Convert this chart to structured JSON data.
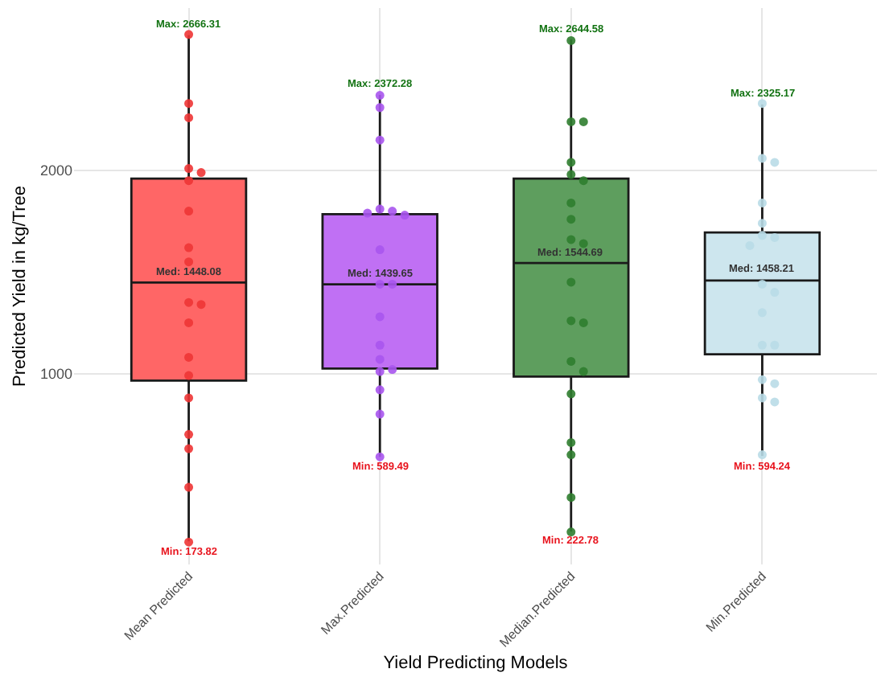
{
  "chart_data": {
    "type": "box",
    "xlabel": "Yield Predicting Models",
    "ylabel": "Predicted Yield in kg/Tree",
    "categories": [
      "Mean Predicted",
      "Max.Predicted",
      "Median.Predicted",
      "Min.Predicted"
    ],
    "boxes": [
      {
        "low": 173.82,
        "q1": 965,
        "median": 1448.08,
        "q3": 1960,
        "high": 2666.31
      },
      {
        "low": 589.49,
        "q1": 1025,
        "median": 1439.65,
        "q3": 1785,
        "high": 2372.28
      },
      {
        "low": 222.78,
        "q1": 985,
        "median": 1544.69,
        "q3": 1960,
        "high": 2644.58
      },
      {
        "low": 594.24,
        "q1": 1095,
        "median": 1458.21,
        "q3": 1695,
        "high": 2325.17
      }
    ],
    "colors": [
      "#ff6666",
      "#c070f4",
      "#5e9e5e",
      "#cde6ee"
    ],
    "series": [
      {
        "type": "scatter",
        "color": "#ee3535",
        "x": [
          "Mean Predicted",
          "Mean Predicted",
          "Mean Predicted",
          "Mean Predicted",
          "Mean Predicted",
          "Mean Predicted",
          "Mean Predicted",
          "Mean Predicted",
          "Mean Predicted",
          "Mean Predicted",
          "Mean Predicted",
          "Mean Predicted",
          "Mean Predicted",
          "Mean Predicted",
          "Mean Predicted",
          "Mean Predicted",
          "Mean Predicted",
          "Mean Predicted",
          "Mean Predicted"
        ],
        "values": [
          2670,
          2330,
          2260,
          2010,
          1990,
          1950,
          1800,
          1620,
          1550,
          1350,
          1340,
          1250,
          1080,
          990,
          880,
          700,
          630,
          440,
          170
        ]
      },
      {
        "type": "scatter",
        "color": "#a855ee",
        "x": [
          "Max.Predicted",
          "Max.Predicted",
          "Max.Predicted",
          "Max.Predicted",
          "Max.Predicted",
          "Max.Predicted",
          "Max.Predicted",
          "Max.Predicted",
          "Max.Predicted",
          "Max.Predicted",
          "Max.Predicted",
          "Max.Predicted",
          "Max.Predicted",
          "Max.Predicted",
          "Max.Predicted",
          "Max.Predicted",
          "Max.Predicted",
          "Max.Predicted"
        ],
        "values": [
          2370,
          2310,
          2150,
          1810,
          1800,
          1790,
          1780,
          1610,
          1440,
          1440,
          1280,
          1140,
          1070,
          1020,
          1010,
          920,
          800,
          590
        ]
      },
      {
        "type": "scatter",
        "color": "#2f7d2f",
        "x": [
          "Median.Predicted",
          "Median.Predicted",
          "Median.Predicted",
          "Median.Predicted",
          "Median.Predicted",
          "Median.Predicted",
          "Median.Predicted",
          "Median.Predicted",
          "Median.Predicted",
          "Median.Predicted",
          "Median.Predicted",
          "Median.Predicted",
          "Median.Predicted",
          "Median.Predicted",
          "Median.Predicted",
          "Median.Predicted",
          "Median.Predicted",
          "Median.Predicted",
          "Median.Predicted",
          "Median.Predicted"
        ],
        "values": [
          2640,
          2240,
          2240,
          2040,
          1980,
          1950,
          1840,
          1760,
          1660,
          1640,
          1450,
          1260,
          1250,
          1060,
          1010,
          900,
          660,
          600,
          390,
          220
        ]
      },
      {
        "type": "scatter",
        "color": "#b9dbe7",
        "x": [
          "Min.Predicted",
          "Min.Predicted",
          "Min.Predicted",
          "Min.Predicted",
          "Min.Predicted",
          "Min.Predicted",
          "Min.Predicted",
          "Min.Predicted",
          "Min.Predicted",
          "Min.Predicted",
          "Min.Predicted",
          "Min.Predicted",
          "Min.Predicted",
          "Min.Predicted",
          "Min.Predicted",
          "Min.Predicted",
          "Min.Predicted",
          "Min.Predicted"
        ],
        "values": [
          2330,
          2060,
          2040,
          1840,
          1740,
          1680,
          1670,
          1630,
          1440,
          1400,
          1300,
          1140,
          1140,
          970,
          950,
          880,
          860,
          600
        ]
      }
    ],
    "marker": "circle",
    "annotations": [
      {
        "text": "Max: 2666.31",
        "x": "Mean Predicted",
        "y": 2666.31
      },
      {
        "text": "Med: 1448.08",
        "x": "Mean Predicted",
        "y": 1448.08
      },
      {
        "text": "Min: 173.82",
        "x": "Mean Predicted",
        "y": 173.82
      },
      {
        "text": "Max: 2372.28",
        "x": "Max.Predicted",
        "y": 2372.28
      },
      {
        "text": "Med: 1439.65",
        "x": "Max.Predicted",
        "y": 1439.65
      },
      {
        "text": "Min: 589.49",
        "x": "Max.Predicted",
        "y": 589.49
      },
      {
        "text": "Max: 2644.58",
        "x": "Median.Predicted",
        "y": 2644.58
      },
      {
        "text": "Med: 1544.69",
        "x": "Median.Predicted",
        "y": 1544.69
      },
      {
        "text": "Min: 222.78",
        "x": "Median.Predicted",
        "y": 222.78
      },
      {
        "text": "Max: 2325.17",
        "x": "Min.Predicted",
        "y": 2325.17
      },
      {
        "text": "Med: 1458.21",
        "x": "Min.Predicted",
        "y": 1458.21
      },
      {
        "text": "Min: 594.24",
        "x": "Min.Predicted",
        "y": 594.24
      }
    ],
    "ylim": [
      60,
      2800
    ],
    "yticks": [
      1000,
      2000
    ],
    "grid": true
  }
}
